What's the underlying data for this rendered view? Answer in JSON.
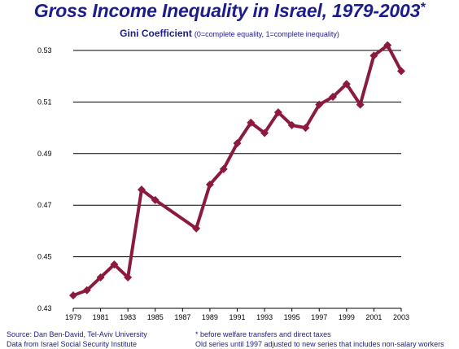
{
  "title": "Gross Income Inequality in Israel, 1979-2003",
  "title_mark": "*",
  "subtitle": {
    "main": "Gini Coefficient",
    "note": "(0=complete equality, 1=complete inequality)"
  },
  "footer": {
    "source_line1": "Source: Dan Ben-David, Tel-Aviv University",
    "source_line2": "Data from  Israel Social Security Institute",
    "note_line1": "* before welfare transfers and direct taxes",
    "note_line2": "Old series until 1997 adjusted to new series that includes non-salary workers"
  },
  "colors": {
    "title": "#1c1c8c",
    "series": "#8b1a3c",
    "grid": "#000000"
  },
  "chart_data": {
    "type": "line",
    "title": "Gross Income Inequality in Israel, 1979-2003",
    "ylabel": "Gini Coefficient",
    "xlim": [
      1979,
      2003
    ],
    "ylim": [
      0.43,
      0.53
    ],
    "yticks": [
      0.43,
      0.45,
      0.47,
      0.49,
      0.51,
      0.53
    ],
    "ytick_labels": [
      "0.43",
      "0.45",
      "0.47",
      "0.49",
      "0.51",
      "0.53"
    ],
    "xticks": [
      1979,
      1981,
      1983,
      1985,
      1987,
      1989,
      1991,
      1993,
      1995,
      1997,
      1999,
      2001,
      2003
    ],
    "xtick_labels": [
      "1979",
      "1981",
      "1983",
      "1985",
      "1987",
      "1989",
      "1991",
      "1993",
      "1995",
      "1997",
      "1999",
      "2001",
      "2003"
    ],
    "grid": true,
    "series": [
      {
        "x": [
          1979,
          1980,
          1981,
          1982,
          1983,
          1984,
          1985,
          1988,
          1989,
          1990,
          1991,
          1992,
          1993,
          1994,
          1995,
          1996,
          1997,
          1998,
          1999,
          2000,
          2001,
          2002,
          2003
        ],
        "y": [
          0.435,
          0.437,
          0.442,
          0.447,
          0.442,
          0.476,
          0.472,
          0.461,
          0.478,
          0.484,
          0.494,
          0.502,
          0.498,
          0.506,
          0.501,
          0.5,
          0.509,
          0.512,
          0.517,
          0.509,
          0.528,
          0.532,
          0.522
        ]
      }
    ]
  }
}
